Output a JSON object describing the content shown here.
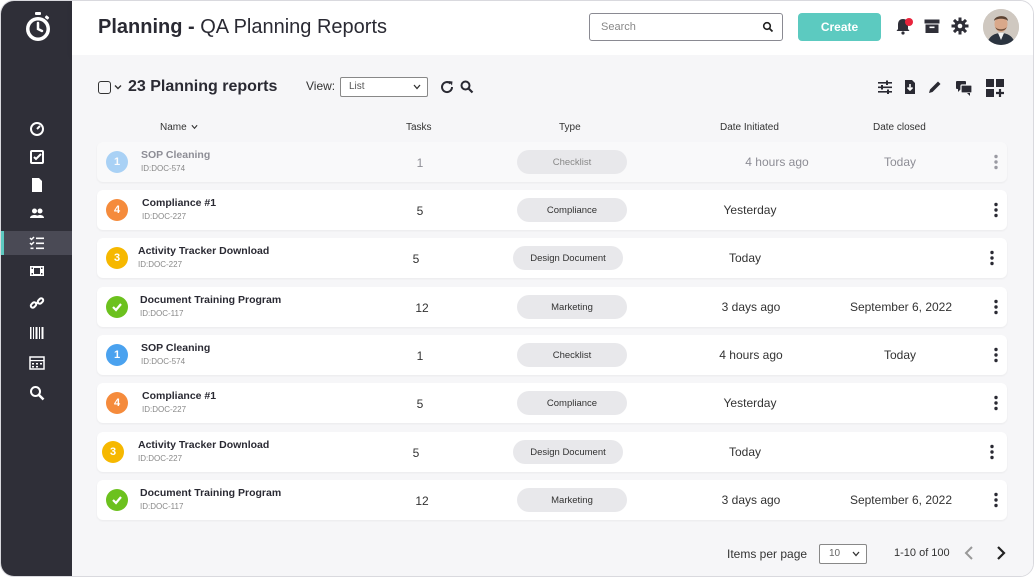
{
  "app": {
    "title_bold": "Planning -",
    "title_rest": " QA Planning Reports"
  },
  "header": {
    "search_placeholder": "Search",
    "create_label": "Create"
  },
  "sidebar": {
    "items": [
      {
        "name": "dashboard-icon"
      },
      {
        "name": "tasks-icon"
      },
      {
        "name": "documents-icon"
      },
      {
        "name": "users-icon"
      },
      {
        "name": "planning-icon",
        "active": true
      },
      {
        "name": "media-icon"
      },
      {
        "name": "links-icon"
      },
      {
        "name": "barcode-icon"
      },
      {
        "name": "calendar-icon"
      },
      {
        "name": "search-icon"
      }
    ]
  },
  "toolbar": {
    "count_title": "23 Planning reports",
    "view_label": "View:",
    "view_value": "List"
  },
  "table": {
    "headers": {
      "name": "Name",
      "tasks": "Tasks",
      "type": "Type",
      "date_initiated": "Date Initiated",
      "date_closed": "Date closed"
    },
    "rows": [
      {
        "badge": "1",
        "badge_color": "#4aa2ef",
        "name": "SOP Cleaning",
        "id": "ID:DOC-574",
        "tasks": "1",
        "type": "Checklist",
        "date_initiated": "4 hours ago",
        "date_closed": "Today",
        "faded": true
      },
      {
        "badge": "4",
        "badge_color": "#f58b3c",
        "name": "Compliance #1",
        "id": "ID:DOC-227",
        "tasks": "5",
        "type": "Compliance",
        "date_initiated": "Yesterday",
        "date_closed": ""
      },
      {
        "badge": "3",
        "badge_color": "#f6b800",
        "name": "Activity Tracker Download",
        "id": "ID:DOC-227",
        "tasks": "5",
        "type": "Design Document",
        "date_initiated": "Today",
        "date_closed": ""
      },
      {
        "badge": "check",
        "badge_color": "#6cc11e",
        "name": "Document Training Program",
        "id": "ID:DOC-117",
        "tasks": "12",
        "type": "Marketing",
        "date_initiated": "3 days ago",
        "date_closed": "September 6, 2022"
      },
      {
        "badge": "1",
        "badge_color": "#4aa2ef",
        "name": "SOP Cleaning",
        "id": "ID:DOC-574",
        "tasks": "1",
        "type": "Checklist",
        "date_initiated": "4 hours ago",
        "date_closed": "Today"
      },
      {
        "badge": "4",
        "badge_color": "#f58b3c",
        "name": "Compliance #1",
        "id": "ID:DOC-227",
        "tasks": "5",
        "type": "Compliance",
        "date_initiated": "Yesterday",
        "date_closed": ""
      },
      {
        "badge": "3",
        "badge_color": "#f6b800",
        "name": "Activity Tracker Download",
        "id": "ID:DOC-227",
        "tasks": "5",
        "type": "Design Document",
        "date_initiated": "Today",
        "date_closed": ""
      },
      {
        "badge": "check",
        "badge_color": "#6cc11e",
        "name": "Document Training Program",
        "id": "ID:DOC-117",
        "tasks": "12",
        "type": "Marketing",
        "date_initiated": "3 days ago",
        "date_closed": "September 6, 2022"
      }
    ]
  },
  "pagination": {
    "items_per_page_label": "Items per page",
    "per_page_value": "10",
    "range": "1-10 of 100"
  }
}
